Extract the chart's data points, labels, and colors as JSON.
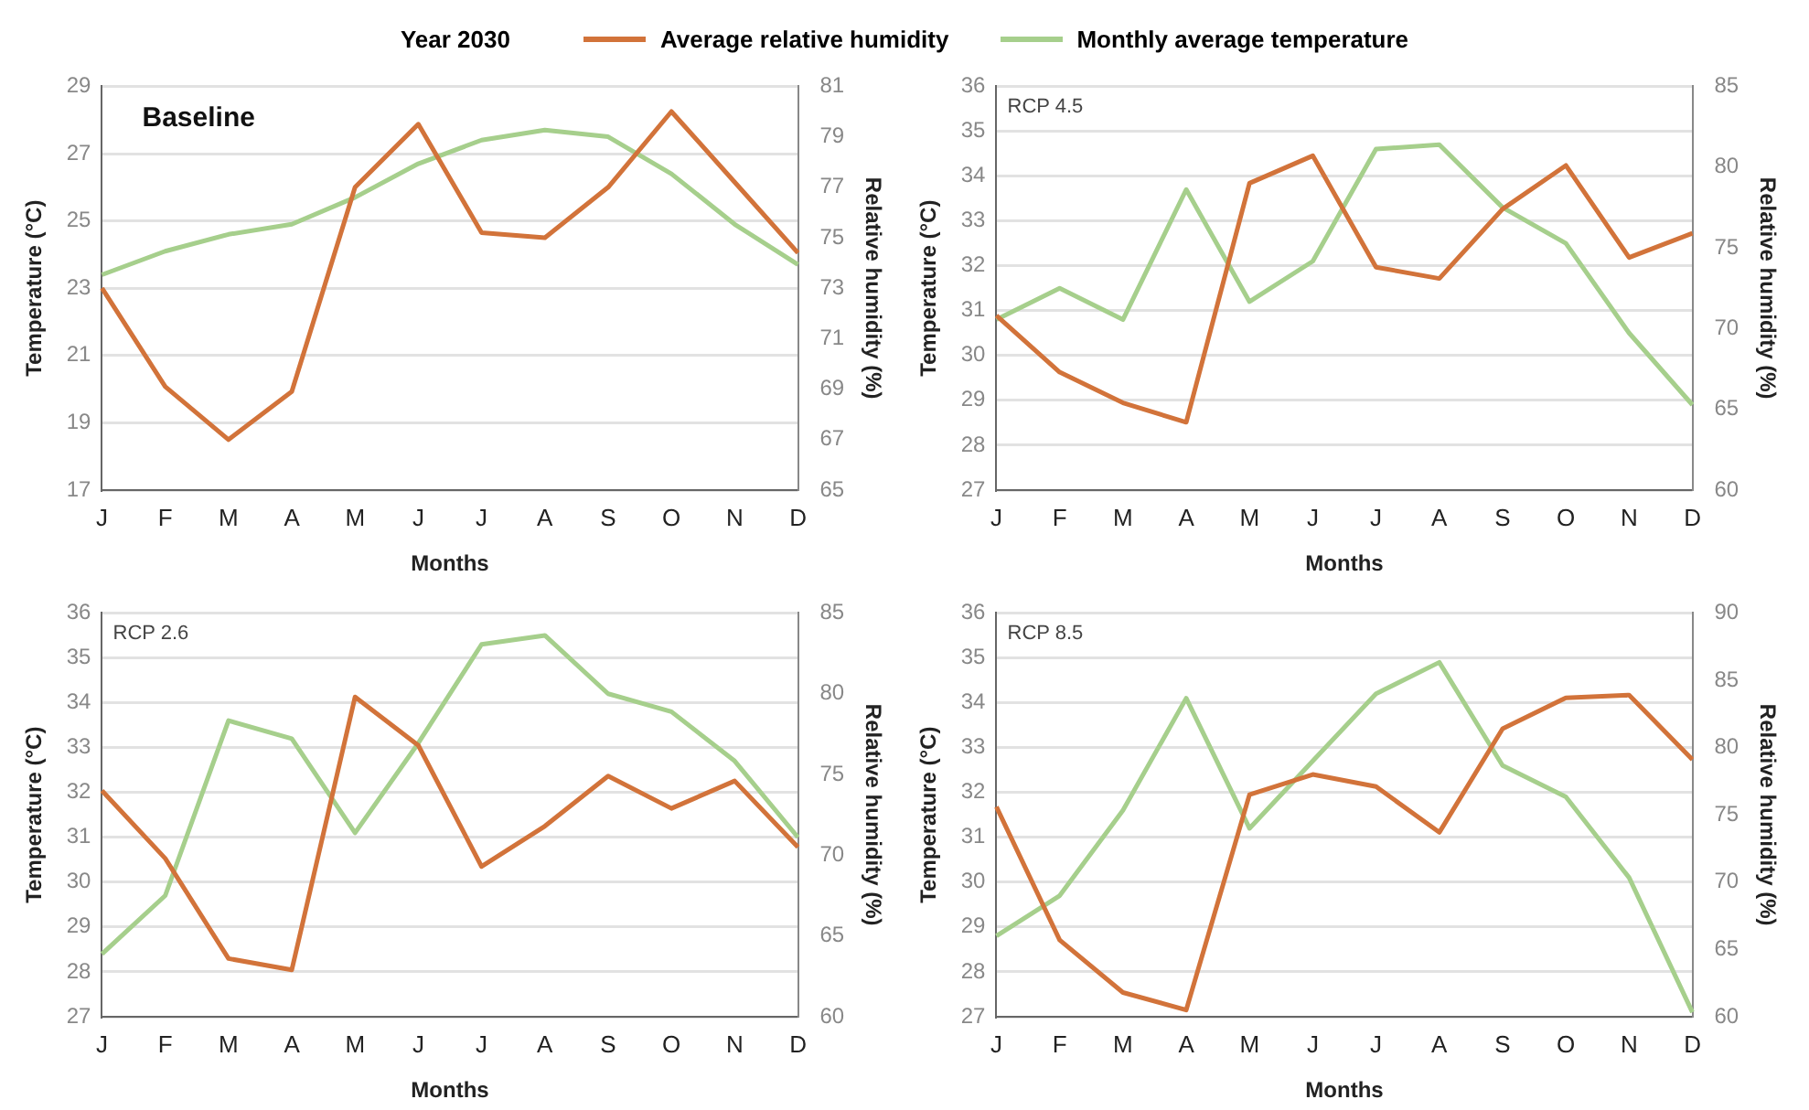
{
  "chart_data": [
    {
      "type": "line",
      "title": "Year 2030",
      "subtitle": "Baseline",
      "xlabel": "Months",
      "ylabel": "Temperature (°C)",
      "y2label": "Relative humidity (%)",
      "categories": [
        "J",
        "F",
        "M",
        "A",
        "M",
        "J",
        "J",
        "A",
        "S",
        "O",
        "N",
        "D"
      ],
      "legend": "top",
      "grid": "y",
      "marker": "none",
      "line_style": "solid",
      "ylim": [
        17,
        29
      ],
      "yticks": [
        17,
        19,
        21,
        23,
        25,
        27,
        29
      ],
      "y2lim": [
        65,
        81
      ],
      "y2ticks": [
        65,
        67,
        69,
        71,
        73,
        75,
        77,
        79,
        81
      ],
      "series": [
        {
          "name": "Average relative humidity",
          "color": "#d2733a",
          "axis": "y2",
          "values": [
            73.0,
            69.1,
            67.0,
            68.9,
            77.0,
            79.5,
            75.2,
            75.0,
            77.0,
            80.0,
            77.2,
            74.4
          ]
        },
        {
          "name": "Monthly average temperature",
          "color": "#a6cf8c",
          "values": [
            23.4,
            24.1,
            24.6,
            24.9,
            25.7,
            26.7,
            27.4,
            27.7,
            27.5,
            26.4,
            24.9,
            23.7
          ]
        }
      ]
    },
    {
      "type": "line",
      "subtitle": "RCP 4.5",
      "xlabel": "Months",
      "ylabel": "Temperature (°C)",
      "y2label": "Relative humidity (%)",
      "categories": [
        "J",
        "F",
        "M",
        "A",
        "M",
        "J",
        "J",
        "A",
        "S",
        "O",
        "N",
        "D"
      ],
      "grid": "y",
      "marker": "none",
      "line_style": "solid",
      "ylim": [
        27,
        36
      ],
      "yticks": [
        27,
        28,
        29,
        30,
        31,
        32,
        33,
        34,
        35,
        36
      ],
      "y2lim": [
        60,
        85
      ],
      "y2ticks": [
        60,
        65,
        70,
        75,
        80,
        85
      ],
      "series": [
        {
          "color": "#d2733a",
          "axis": "y2",
          "values": [
            70.8,
            67.3,
            65.4,
            64.2,
            79.0,
            80.7,
            73.8,
            73.1,
            77.4,
            80.1,
            74.4,
            75.9
          ]
        },
        {
          "color": "#a6cf8c",
          "values": [
            30.8,
            31.5,
            30.8,
            33.7,
            31.2,
            32.1,
            34.6,
            34.7,
            33.3,
            32.5,
            30.5,
            28.9
          ]
        }
      ]
    },
    {
      "type": "line",
      "subtitle": "RCP 2.6",
      "xlabel": "Months",
      "ylabel": "Temperature (°C)",
      "y2label": "Relative humidity (%)",
      "categories": [
        "J",
        "F",
        "M",
        "A",
        "M",
        "J",
        "J",
        "A",
        "S",
        "O",
        "N",
        "D"
      ],
      "grid": "y",
      "marker": "none",
      "line_style": "solid",
      "ylim": [
        27,
        36
      ],
      "yticks": [
        27,
        28,
        29,
        30,
        31,
        32,
        33,
        34,
        35,
        36
      ],
      "y2lim": [
        60,
        85
      ],
      "y2ticks": [
        60,
        65,
        70,
        75,
        80,
        85
      ],
      "series": [
        {
          "color": "#d2733a",
          "axis": "y2",
          "values": [
            74.0,
            69.8,
            63.6,
            62.9,
            79.8,
            76.8,
            69.3,
            71.8,
            74.9,
            72.9,
            74.6,
            70.5
          ]
        },
        {
          "color": "#a6cf8c",
          "values": [
            28.4,
            29.7,
            33.6,
            33.2,
            31.1,
            33.1,
            35.3,
            35.5,
            34.2,
            33.8,
            32.7,
            31.0
          ]
        }
      ]
    },
    {
      "type": "line",
      "subtitle": "RCP 8.5",
      "xlabel": "Months",
      "ylabel": "Temperature (°C)",
      "y2label": "Relative humidity (%)",
      "categories": [
        "J",
        "F",
        "M",
        "A",
        "M",
        "J",
        "J",
        "A",
        "S",
        "O",
        "N",
        "D"
      ],
      "grid": "y",
      "marker": "none",
      "line_style": "solid",
      "ylim": [
        27,
        36
      ],
      "yticks": [
        27,
        28,
        29,
        30,
        31,
        32,
        33,
        34,
        35,
        36
      ],
      "y2lim": [
        60,
        90
      ],
      "y2ticks": [
        60,
        65,
        70,
        75,
        80,
        85,
        90
      ],
      "series": [
        {
          "color": "#d2733a",
          "axis": "y2",
          "values": [
            75.6,
            65.7,
            61.8,
            60.5,
            76.5,
            78.0,
            77.1,
            73.7,
            81.4,
            83.7,
            83.9,
            79.1
          ]
        },
        {
          "color": "#a6cf8c",
          "values": [
            28.8,
            29.7,
            31.6,
            34.1,
            31.2,
            32.7,
            34.2,
            34.9,
            32.6,
            31.9,
            30.1,
            27.1
          ]
        }
      ]
    }
  ]
}
